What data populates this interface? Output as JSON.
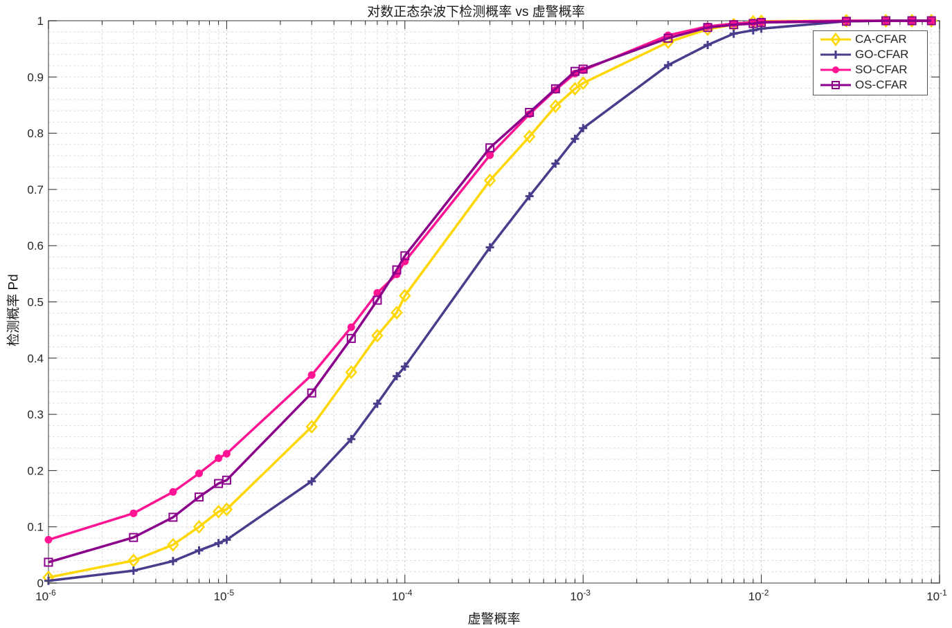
{
  "chart_data": {
    "type": "line",
    "title": "对数正态杂波下检测概率 vs 虚警概率",
    "xlabel": "虚警概率",
    "ylabel": "检测概率 Pd",
    "xscale": "log",
    "xlim": [
      1e-06,
      0.1
    ],
    "ylim": [
      0,
      1
    ],
    "grid": true,
    "minor_grid": true,
    "legend_position": "upper right",
    "x_tick_labels": [
      "10^-6",
      "10^-5",
      "10^-4",
      "10^-3",
      "10^-2",
      "10^-1"
    ],
    "y_tick_labels": [
      "0",
      "0.1",
      "0.2",
      "0.3",
      "0.4",
      "0.5",
      "0.6",
      "0.7",
      "0.8",
      "0.9",
      "1"
    ],
    "x": [
      1e-06,
      3e-06,
      5e-06,
      7e-06,
      9e-06,
      1e-05,
      3e-05,
      5e-05,
      7e-05,
      9e-05,
      0.0001,
      0.0003,
      0.0005,
      0.0007,
      0.0009,
      0.001,
      0.003,
      0.005,
      0.007,
      0.009,
      0.01,
      0.03,
      0.05,
      0.07,
      0.09
    ],
    "series": [
      {
        "name": "CA-CFAR",
        "color": "#FFD700",
        "marker": "diamond",
        "values": [
          0.01,
          0.04,
          0.068,
          0.1,
          0.127,
          0.131,
          0.278,
          0.375,
          0.44,
          0.481,
          0.511,
          0.716,
          0.794,
          0.848,
          0.879,
          0.889,
          0.962,
          0.985,
          0.993,
          0.998,
          0.999,
          1.0,
          1.0,
          1.0,
          1.0
        ]
      },
      {
        "name": "GO-CFAR",
        "color": "#483D8B",
        "marker": "plus",
        "values": [
          0.004,
          0.022,
          0.039,
          0.058,
          0.071,
          0.077,
          0.181,
          0.256,
          0.319,
          0.368,
          0.385,
          0.597,
          0.688,
          0.746,
          0.79,
          0.809,
          0.921,
          0.957,
          0.977,
          0.983,
          0.986,
          0.999,
          1.0,
          1.0,
          1.0
        ]
      },
      {
        "name": "SO-CFAR",
        "color": "#FF1493",
        "marker": "circle",
        "values": [
          0.077,
          0.124,
          0.162,
          0.195,
          0.222,
          0.23,
          0.37,
          0.455,
          0.516,
          0.549,
          0.572,
          0.761,
          0.834,
          0.877,
          0.906,
          0.912,
          0.974,
          0.99,
          0.995,
          0.997,
          0.998,
          1.0,
          1.0,
          1.0,
          1.0
        ]
      },
      {
        "name": "OS-CFAR",
        "color": "#8B008B",
        "marker": "square",
        "values": [
          0.037,
          0.081,
          0.117,
          0.153,
          0.177,
          0.183,
          0.338,
          0.435,
          0.503,
          0.557,
          0.582,
          0.774,
          0.837,
          0.879,
          0.91,
          0.914,
          0.969,
          0.988,
          0.993,
          0.995,
          0.997,
          0.999,
          1.0,
          1.0,
          1.0
        ]
      }
    ]
  },
  "legend": {
    "items": [
      {
        "label": "CA-CFAR"
      },
      {
        "label": "GO-CFAR"
      },
      {
        "label": "SO-CFAR"
      },
      {
        "label": "OS-CFAR"
      }
    ]
  }
}
